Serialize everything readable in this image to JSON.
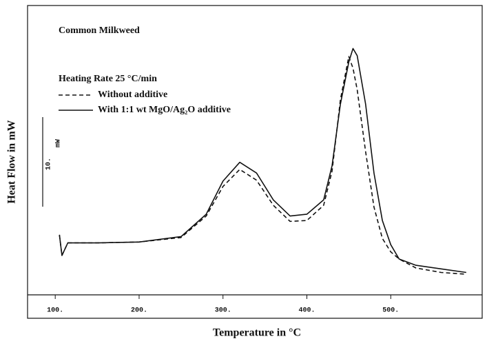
{
  "chart_data": {
    "type": "line",
    "title": "Common Milkweed",
    "subtitle": "Heating Rate 25 °C/min",
    "x_label": "Temperature in °C",
    "y_label": "Heat Flow in mW",
    "scale_bar": {
      "value": 10,
      "label": "10.",
      "unit": "mW"
    },
    "x": [
      105,
      108,
      115,
      150,
      200,
      250,
      280,
      300,
      320,
      340,
      360,
      380,
      400,
      420,
      430,
      440,
      450,
      455,
      460,
      470,
      480,
      490,
      500,
      510,
      530,
      560,
      590
    ],
    "series": [
      {
        "name": "Without additive",
        "color": "#111111",
        "dash": true,
        "values": [
          0.9,
          -1.4,
          0,
          0,
          0.1,
          0.6,
          3.0,
          6.3,
          8.2,
          7.0,
          4.2,
          2.4,
          2.5,
          4.2,
          8.0,
          16.0,
          20.8,
          19.5,
          17.1,
          10.2,
          4.0,
          0.5,
          -1.0,
          -1.8,
          -2.8,
          -3.3,
          -3.5
        ]
      },
      {
        "name": "With 1:1 wt MgO/Ag₂O additive",
        "color": "#111111",
        "dash": false,
        "values": [
          0.9,
          -1.4,
          0,
          0,
          0.1,
          0.7,
          3.2,
          6.9,
          9.0,
          7.8,
          4.8,
          3.0,
          3.2,
          4.8,
          8.6,
          15.5,
          20.2,
          21.7,
          20.9,
          15.5,
          7.8,
          2.5,
          -0.2,
          -1.8,
          -2.5,
          -2.9,
          -3.3
        ]
      }
    ],
    "xlim": [
      67,
      609
    ],
    "ylim": [
      -5.8,
      26.5
    ],
    "xticks": [
      {
        "value": 100,
        "label": "100."
      },
      {
        "value": 200,
        "label": "200."
      },
      {
        "value": 300,
        "label": "300."
      },
      {
        "value": 400,
        "label": "400."
      },
      {
        "value": 500,
        "label": "500."
      }
    ]
  }
}
